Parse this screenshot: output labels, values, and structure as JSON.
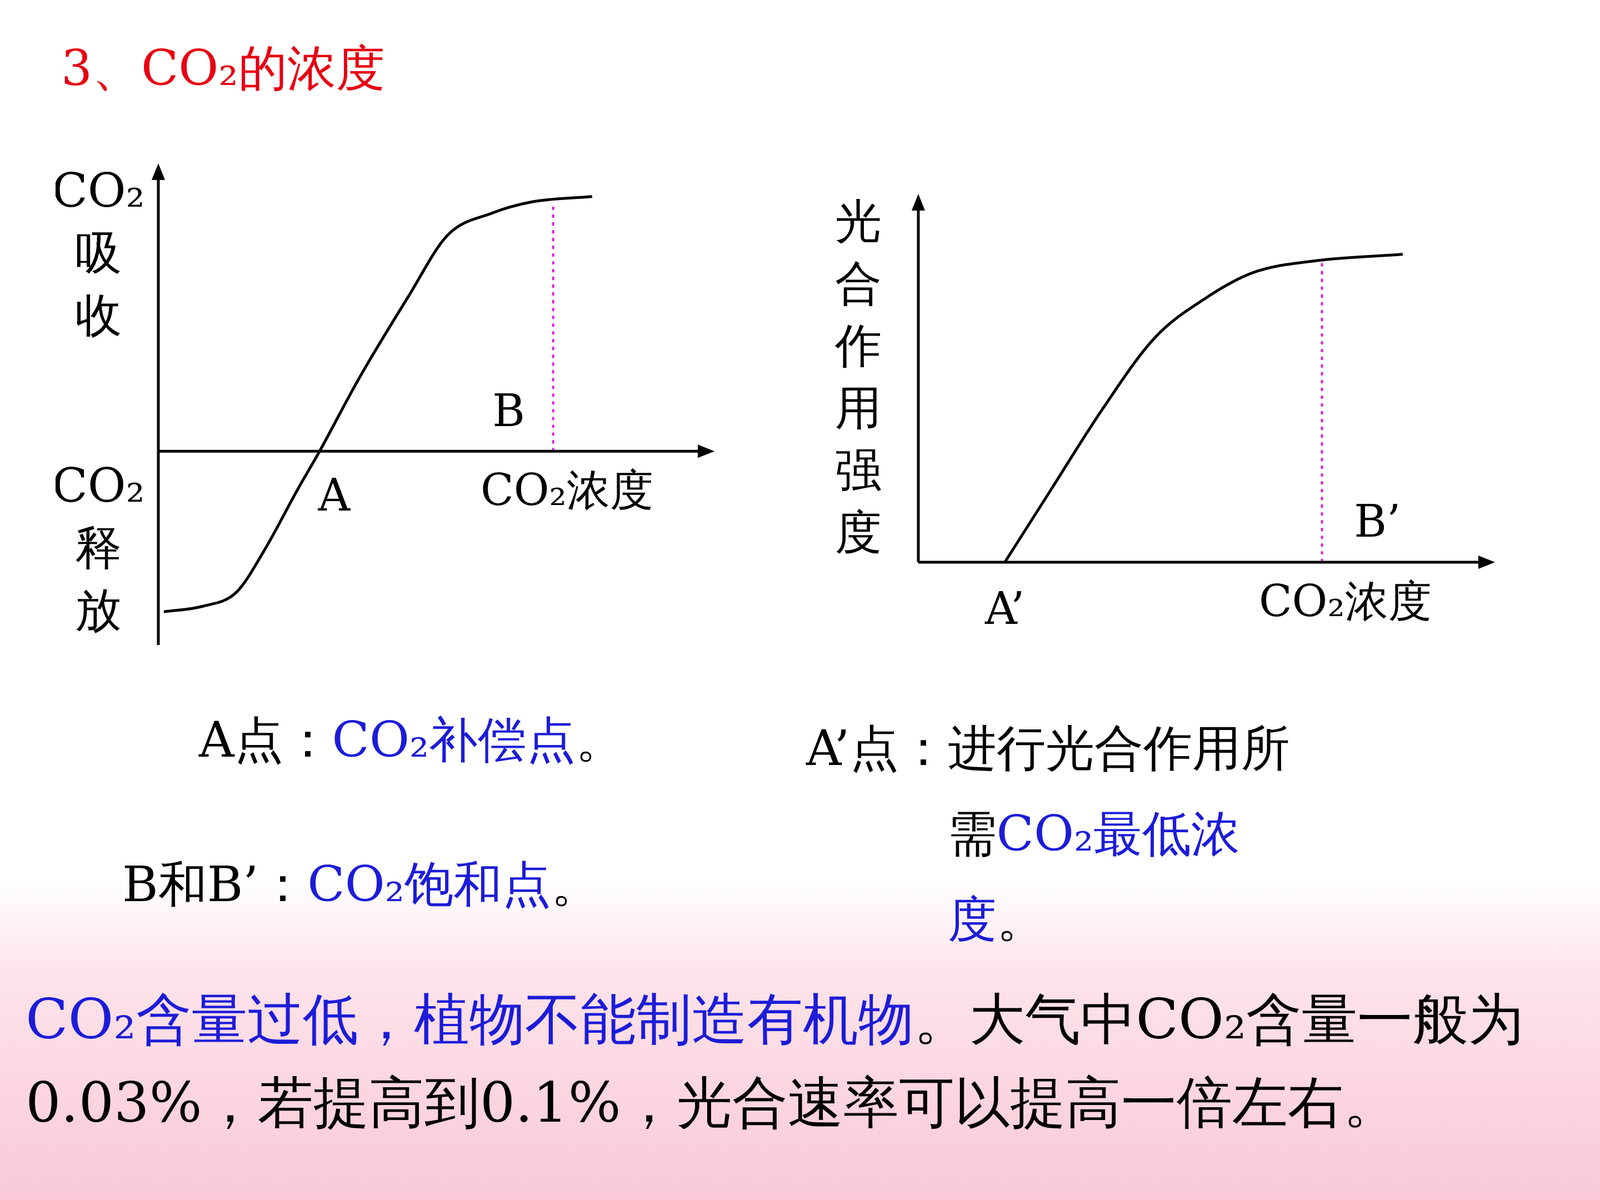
{
  "title": {
    "text": "3、CO₂的浓度",
    "color": "#e60012"
  },
  "chart_data": [
    {
      "type": "line",
      "ylabel_top": "CO₂吸收",
      "ylabel_bottom": "CO₂释放",
      "xlabel": "CO₂浓度",
      "xlim": [
        0,
        100
      ],
      "ylim": [
        -35,
        52
      ],
      "tick_labels": false,
      "grid": false,
      "series": [
        {
          "color": "#000000",
          "marker": "none",
          "line_style": "solid",
          "x": [
            1,
            8,
            14,
            19,
            25,
            29,
            36,
            45,
            52,
            60,
            67,
            78
          ],
          "values": [
            -29,
            -28,
            -25.5,
            -18,
            -7,
            0,
            13,
            28,
            39,
            43,
            45,
            46
          ]
        },
        {
          "color": "#e020e0",
          "marker": "none",
          "line_style": "dotted",
          "x": [
            71,
            71
          ],
          "values": [
            0,
            45
          ]
        }
      ],
      "annotations": [
        {
          "text": "A",
          "x": 31.6,
          "y": -8.6
        },
        {
          "text": "B",
          "x": 63,
          "y": 6.6
        }
      ]
    },
    {
      "type": "line",
      "ylabel": "光合作用强度",
      "xlabel": "CO₂浓度",
      "xlim": [
        0,
        100
      ],
      "ylim": [
        0,
        64
      ],
      "tick_labels": false,
      "grid": false,
      "series": [
        {
          "color": "#000000",
          "marker": "none",
          "line_style": "solid",
          "x": [
            15,
            23,
            32,
            41,
            50,
            58,
            69,
            84
          ],
          "values": [
            0,
            12.6,
            26.7,
            39,
            46,
            50.3,
            52.4,
            53.5
          ]
        },
        {
          "color": "#e020e0",
          "marker": "none",
          "line_style": "dotted",
          "x": [
            70,
            70
          ],
          "values": [
            0,
            52.4
          ]
        }
      ],
      "annotations": [
        {
          "text": "A’",
          "x": 15,
          "y": -8.7
        },
        {
          "text": "B’",
          "x": 79.6,
          "y": 6.4
        }
      ]
    }
  ],
  "notes": [
    {
      "segments": [
        {
          "text": "A点：",
          "color": "#000000"
        },
        {
          "text": "CO₂补偿点",
          "color": "#1c1cd8"
        },
        {
          "text": "。",
          "color": "#000000"
        }
      ]
    },
    {
      "segments": [
        {
          "text": "B和B’：",
          "color": "#000000"
        },
        {
          "text": "CO₂饱和点",
          "color": "#1c1cd8"
        },
        {
          "text": "。",
          "color": "#000000"
        }
      ]
    },
    {
      "segments": [
        {
          "text": "A’点：",
          "color": "#000000"
        },
        {
          "text": "进行光合作用所需",
          "color": "#000000"
        },
        {
          "text": "CO₂最低浓度",
          "color": "#1c1cd8"
        },
        {
          "text": "。",
          "color": "#000000"
        }
      ]
    }
  ],
  "paragraph": {
    "segments": [
      {
        "text": "CO₂含量过低，植物不能制造有机物",
        "color": "#1c1cd8"
      },
      {
        "text": "。大气中CO₂含量一般为0.03%，若提高到0.1%，光合速率可以提高一倍左右。",
        "color": "#000000"
      }
    ]
  }
}
